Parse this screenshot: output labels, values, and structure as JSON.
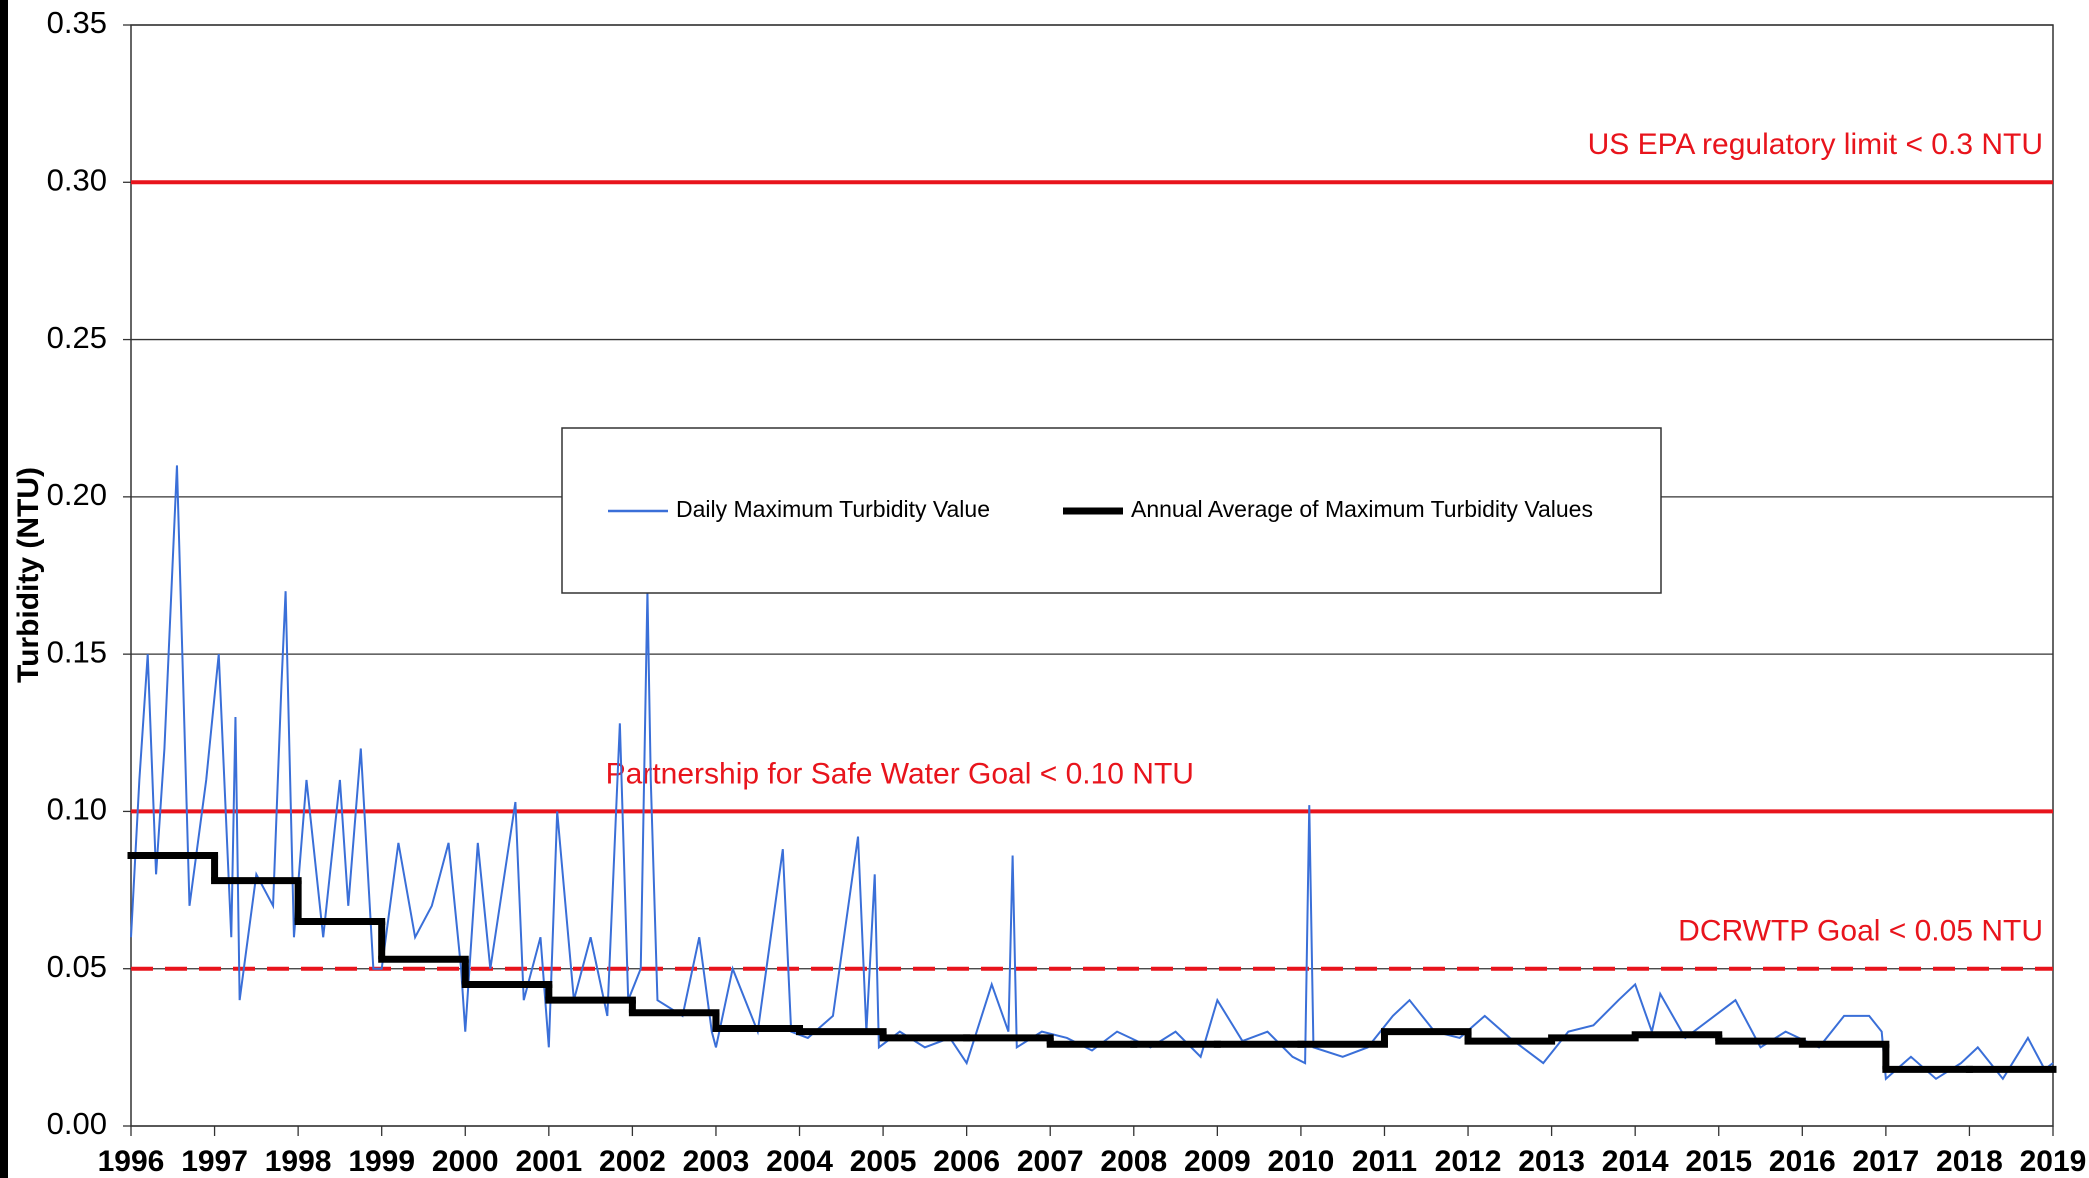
{
  "chart_data": {
    "type": "line",
    "y_label": "Turbidity (NTU)",
    "xlim": [
      1996,
      2019
    ],
    "xticks": [
      1996,
      1997,
      1998,
      1999,
      2000,
      2001,
      2002,
      2003,
      2004,
      2005,
      2006,
      2007,
      2008,
      2009,
      2010,
      2011,
      2012,
      2013,
      2014,
      2015,
      2016,
      2017,
      2018,
      2019
    ],
    "ylim": [
      0,
      0.35
    ],
    "yticks": [
      {
        "value": 0,
        "label": "0.00"
      },
      {
        "value": 0.05,
        "label": "0.05"
      },
      {
        "value": 0.1,
        "label": "0.10"
      },
      {
        "value": 0.15,
        "label": "0.15"
      },
      {
        "value": 0.2,
        "label": "0.20"
      },
      {
        "value": 0.25,
        "label": "0.25"
      },
      {
        "value": 0.3,
        "label": "0.30"
      },
      {
        "value": 0.35,
        "label": "0.35"
      }
    ],
    "grid": true,
    "series": [
      {
        "name": "Daily Maximum Turbidity Value",
        "color": "#3a6fd8",
        "style": "line",
        "x": [
          1996.0,
          1996.1,
          1996.2,
          1996.3,
          1996.4,
          1996.55,
          1996.7,
          1996.9,
          1997.05,
          1997.2,
          1997.25,
          1997.3,
          1997.5,
          1997.7,
          1997.8,
          1997.85,
          1997.95,
          1998.1,
          1998.3,
          1998.5,
          1998.6,
          1998.75,
          1998.9,
          1999.0,
          1999.2,
          1999.4,
          1999.6,
          1999.8,
          1999.95,
          2000.0,
          2000.15,
          2000.3,
          2000.6,
          2000.7,
          2000.9,
          2001.0,
          2001.1,
          2001.3,
          2001.5,
          2001.7,
          2001.85,
          2001.95,
          2002.1,
          2002.18,
          2002.22,
          2002.3,
          2002.6,
          2002.8,
          2002.95,
          2003.0,
          2003.2,
          2003.5,
          2003.8,
          2003.9,
          2004.1,
          2004.4,
          2004.7,
          2004.8,
          2004.9,
          2004.95,
          2005.2,
          2005.5,
          2005.8,
          2006.0,
          2006.3,
          2006.5,
          2006.55,
          2006.6,
          2006.9,
          2007.2,
          2007.5,
          2007.8,
          2008.2,
          2008.5,
          2008.8,
          2009.0,
          2009.3,
          2009.6,
          2009.9,
          2010.05,
          2010.1,
          2010.15,
          2010.5,
          2010.8,
          2011.1,
          2011.3,
          2011.6,
          2011.9,
          2012.2,
          2012.5,
          2012.9,
          2013.2,
          2013.5,
          2013.8,
          2014.0,
          2014.2,
          2014.3,
          2014.6,
          2015.2,
          2015.5,
          2015.8,
          2016.2,
          2016.5,
          2016.8,
          2016.95,
          2017.0,
          2017.3,
          2017.6,
          2017.9,
          2018.1,
          2018.4,
          2018.7,
          2018.9,
          2019.0
        ],
        "values": [
          0.06,
          0.11,
          0.15,
          0.08,
          0.12,
          0.21,
          0.07,
          0.11,
          0.15,
          0.06,
          0.13,
          0.04,
          0.08,
          0.07,
          0.14,
          0.17,
          0.06,
          0.11,
          0.06,
          0.11,
          0.07,
          0.12,
          0.05,
          0.05,
          0.09,
          0.06,
          0.07,
          0.09,
          0.05,
          0.03,
          0.09,
          0.05,
          0.103,
          0.04,
          0.06,
          0.025,
          0.1,
          0.04,
          0.06,
          0.035,
          0.128,
          0.04,
          0.05,
          0.17,
          0.11,
          0.04,
          0.035,
          0.06,
          0.03,
          0.025,
          0.05,
          0.03,
          0.088,
          0.03,
          0.028,
          0.035,
          0.092,
          0.03,
          0.08,
          0.025,
          0.03,
          0.025,
          0.028,
          0.02,
          0.045,
          0.03,
          0.086,
          0.025,
          0.03,
          0.028,
          0.024,
          0.03,
          0.025,
          0.03,
          0.022,
          0.04,
          0.027,
          0.03,
          0.022,
          0.02,
          0.102,
          0.025,
          0.022,
          0.025,
          0.035,
          0.04,
          0.03,
          0.028,
          0.035,
          0.028,
          0.02,
          0.03,
          0.032,
          0.04,
          0.045,
          0.03,
          0.042,
          0.028,
          0.04,
          0.025,
          0.03,
          0.025,
          0.035,
          0.035,
          0.03,
          0.015,
          0.022,
          0.015,
          0.02,
          0.025,
          0.015,
          0.028,
          0.018,
          0.02
        ]
      },
      {
        "name": "Annual Average of Maximum Turbidity Values",
        "color": "#000000",
        "style": "step",
        "x": [
          1996,
          1997,
          1998,
          1999,
          2000,
          2001,
          2002,
          2003,
          2004,
          2005,
          2006,
          2007,
          2008,
          2009,
          2010,
          2011,
          2012,
          2013,
          2014,
          2015,
          2016,
          2017,
          2018
        ],
        "values": [
          0.086,
          0.078,
          0.065,
          0.053,
          0.045,
          0.04,
          0.036,
          0.031,
          0.03,
          0.028,
          0.028,
          0.026,
          0.026,
          0.026,
          0.026,
          0.03,
          0.027,
          0.028,
          0.029,
          0.027,
          0.026,
          0.018,
          0.018
        ]
      }
    ],
    "reference_lines": [
      {
        "value": 0.3,
        "label": "US EPA regulatory limit < 0.3 NTU",
        "color": "#e8141c",
        "dashed": false,
        "label_align": "right"
      },
      {
        "value": 0.1,
        "label": "Partnership for Safe Water Goal < 0.10 NTU",
        "color": "#e8141c",
        "dashed": false,
        "label_align": "center"
      },
      {
        "value": 0.05,
        "label": "DCRWTP Goal < 0.05 NTU",
        "color": "#e8141c",
        "dashed": true,
        "label_align": "right"
      }
    ]
  }
}
